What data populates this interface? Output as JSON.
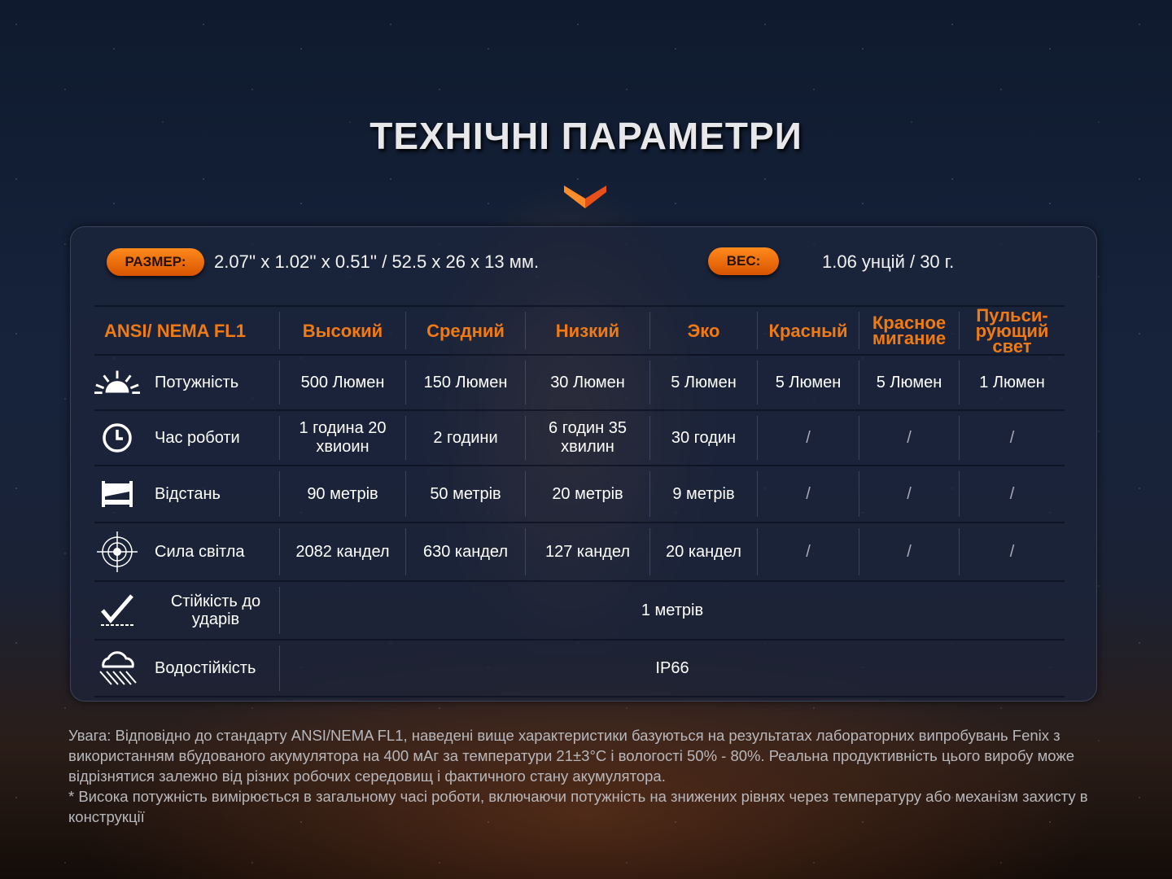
{
  "title": "ТЕХНІЧНІ ПАРАМЕТРИ",
  "accent": "#f07a14",
  "size": {
    "label": "РАЗМЕР:",
    "value": "2.07'' x 1.02'' x 0.51'' / 52.5 x 26 x 13 мм."
  },
  "weight": {
    "label": "ВЕС:",
    "value": "1.06 унцій / 30 г."
  },
  "table": {
    "headers": [
      "ANSI/ NEMA  FL1",
      "Высокий",
      "Средний",
      "Низкий",
      "Эко",
      "Красный",
      "Красное мигание",
      "Пульси-рующий свет"
    ],
    "rows": [
      {
        "icon": "sun-burst-icon",
        "label": "Потужність",
        "cells": [
          "500 Люмен",
          "150 Люмен",
          "30 Люмен",
          "5 Люмен",
          "5 Люмен",
          "5 Люмен",
          "1 Люмен"
        ]
      },
      {
        "icon": "clock-icon",
        "label": "Час роботи",
        "cells": [
          "1 година 20 хвиоин",
          "2 години",
          "6 годин 35 хвилин",
          "30 годин",
          "/",
          "/",
          "/"
        ]
      },
      {
        "icon": "beam-distance-icon",
        "label": "Відстань",
        "cells": [
          "90 метрів",
          "50 метрів",
          "20 метрів",
          "9 метрів",
          "/",
          "/",
          "/"
        ]
      },
      {
        "icon": "target-icon",
        "label": "Сила світла",
        "cells": [
          "2082 кандел",
          "630 кандел",
          "127 кандел",
          "20 кандел",
          "/",
          "/",
          "/"
        ]
      },
      {
        "icon": "impact-check-icon",
        "label": "Стійкість до ударів",
        "value": "1 метрів"
      },
      {
        "icon": "rain-cloud-icon",
        "label": "Водостійкість",
        "value": "IP66"
      }
    ]
  },
  "note": [
    "Увага: Відповідно до стандарту ANSI/NEMA FL1, наведені вище характеристики базуються на результатах лабораторних випробувань Fenix з використанням вбудованого акумулятора на 400 мАг за температури 21±3°C і вологості 50% - 80%. Реальна продуктивність цього виробу може відрізнятися залежно від різних робочих середовищ і фактичного стану акумулятора.",
    "* Висока потужність вимірюється в загальному часі роботи, включаючи потужність на знижених рівнях через температуру або механізм захисту в конструкції"
  ]
}
